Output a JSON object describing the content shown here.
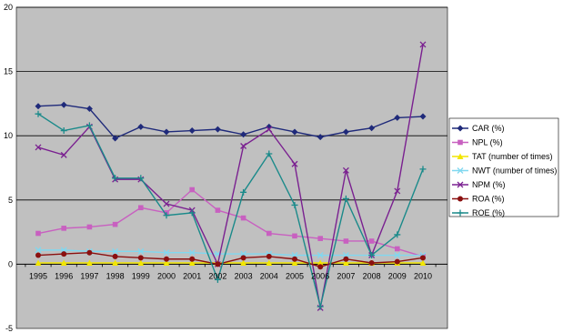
{
  "chart_data": {
    "type": "line",
    "title": "",
    "xlabel": "",
    "ylabel": "",
    "ylim": [
      -5,
      20
    ],
    "yticks": [
      -5,
      0,
      5,
      10,
      15,
      20
    ],
    "grid": "horizontal major gridlines",
    "legend_position": "right",
    "plot_background": "#c0c0c0",
    "categories": [
      "1995",
      "1996",
      "1997",
      "1998",
      "1999",
      "2000",
      "2001",
      "2002",
      "2003",
      "2004",
      "2005",
      "2006",
      "2007",
      "2008",
      "2009",
      "2010"
    ],
    "series": [
      {
        "name": "CAR (%)",
        "color": "#1f2a7a",
        "marker": "diamond",
        "values": [
          12.3,
          12.4,
          12.1,
          9.8,
          10.7,
          10.3,
          10.4,
          10.5,
          10.1,
          10.7,
          10.3,
          9.9,
          10.3,
          10.6,
          11.4,
          11.5
        ]
      },
      {
        "name": "NPL (%)",
        "color": "#c860c0",
        "marker": "square",
        "values": [
          2.4,
          2.8,
          2.9,
          3.1,
          4.4,
          4.0,
          5.8,
          4.2,
          3.6,
          2.4,
          2.2,
          2.0,
          1.8,
          1.8,
          1.2,
          0.6
        ]
      },
      {
        "name": "TAT (number of times)",
        "color": "#f2e600",
        "marker": "triangle",
        "values": [
          0.1,
          0.1,
          0.1,
          0.1,
          0.1,
          0.1,
          0.1,
          0.1,
          0.1,
          0.1,
          0.1,
          0.1,
          0.1,
          0.1,
          0.1,
          0.1
        ]
      },
      {
        "name": "NWT (number of times)",
        "color": "#80d8f0",
        "marker": "x",
        "values": [
          1.1,
          1.1,
          1.0,
          1.0,
          1.0,
          0.9,
          0.9,
          0.8,
          0.8,
          0.8,
          0.7,
          0.7,
          0.7,
          0.7,
          0.7,
          0.7
        ]
      },
      {
        "name": "NPM (%)",
        "color": "#7a2090",
        "marker": "x",
        "values": [
          9.1,
          8.5,
          10.7,
          6.6,
          6.6,
          4.7,
          4.2,
          0.0,
          9.2,
          10.5,
          7.8,
          -3.4,
          7.3,
          0.7,
          5.7,
          17.1
        ]
      },
      {
        "name": "ROA (%)",
        "color": "#8a1010",
        "marker": "circle",
        "values": [
          0.7,
          0.8,
          0.9,
          0.6,
          0.5,
          0.4,
          0.4,
          0.0,
          0.5,
          0.6,
          0.4,
          -0.2,
          0.4,
          0.1,
          0.2,
          0.5
        ]
      },
      {
        "name": "ROE (%)",
        "color": "#1a8a8a",
        "marker": "plus",
        "values": [
          11.7,
          10.4,
          10.8,
          6.7,
          6.7,
          3.8,
          4.0,
          -1.2,
          5.6,
          8.6,
          4.6,
          -3.3,
          5.1,
          0.7,
          2.3,
          7.4
        ]
      }
    ]
  }
}
